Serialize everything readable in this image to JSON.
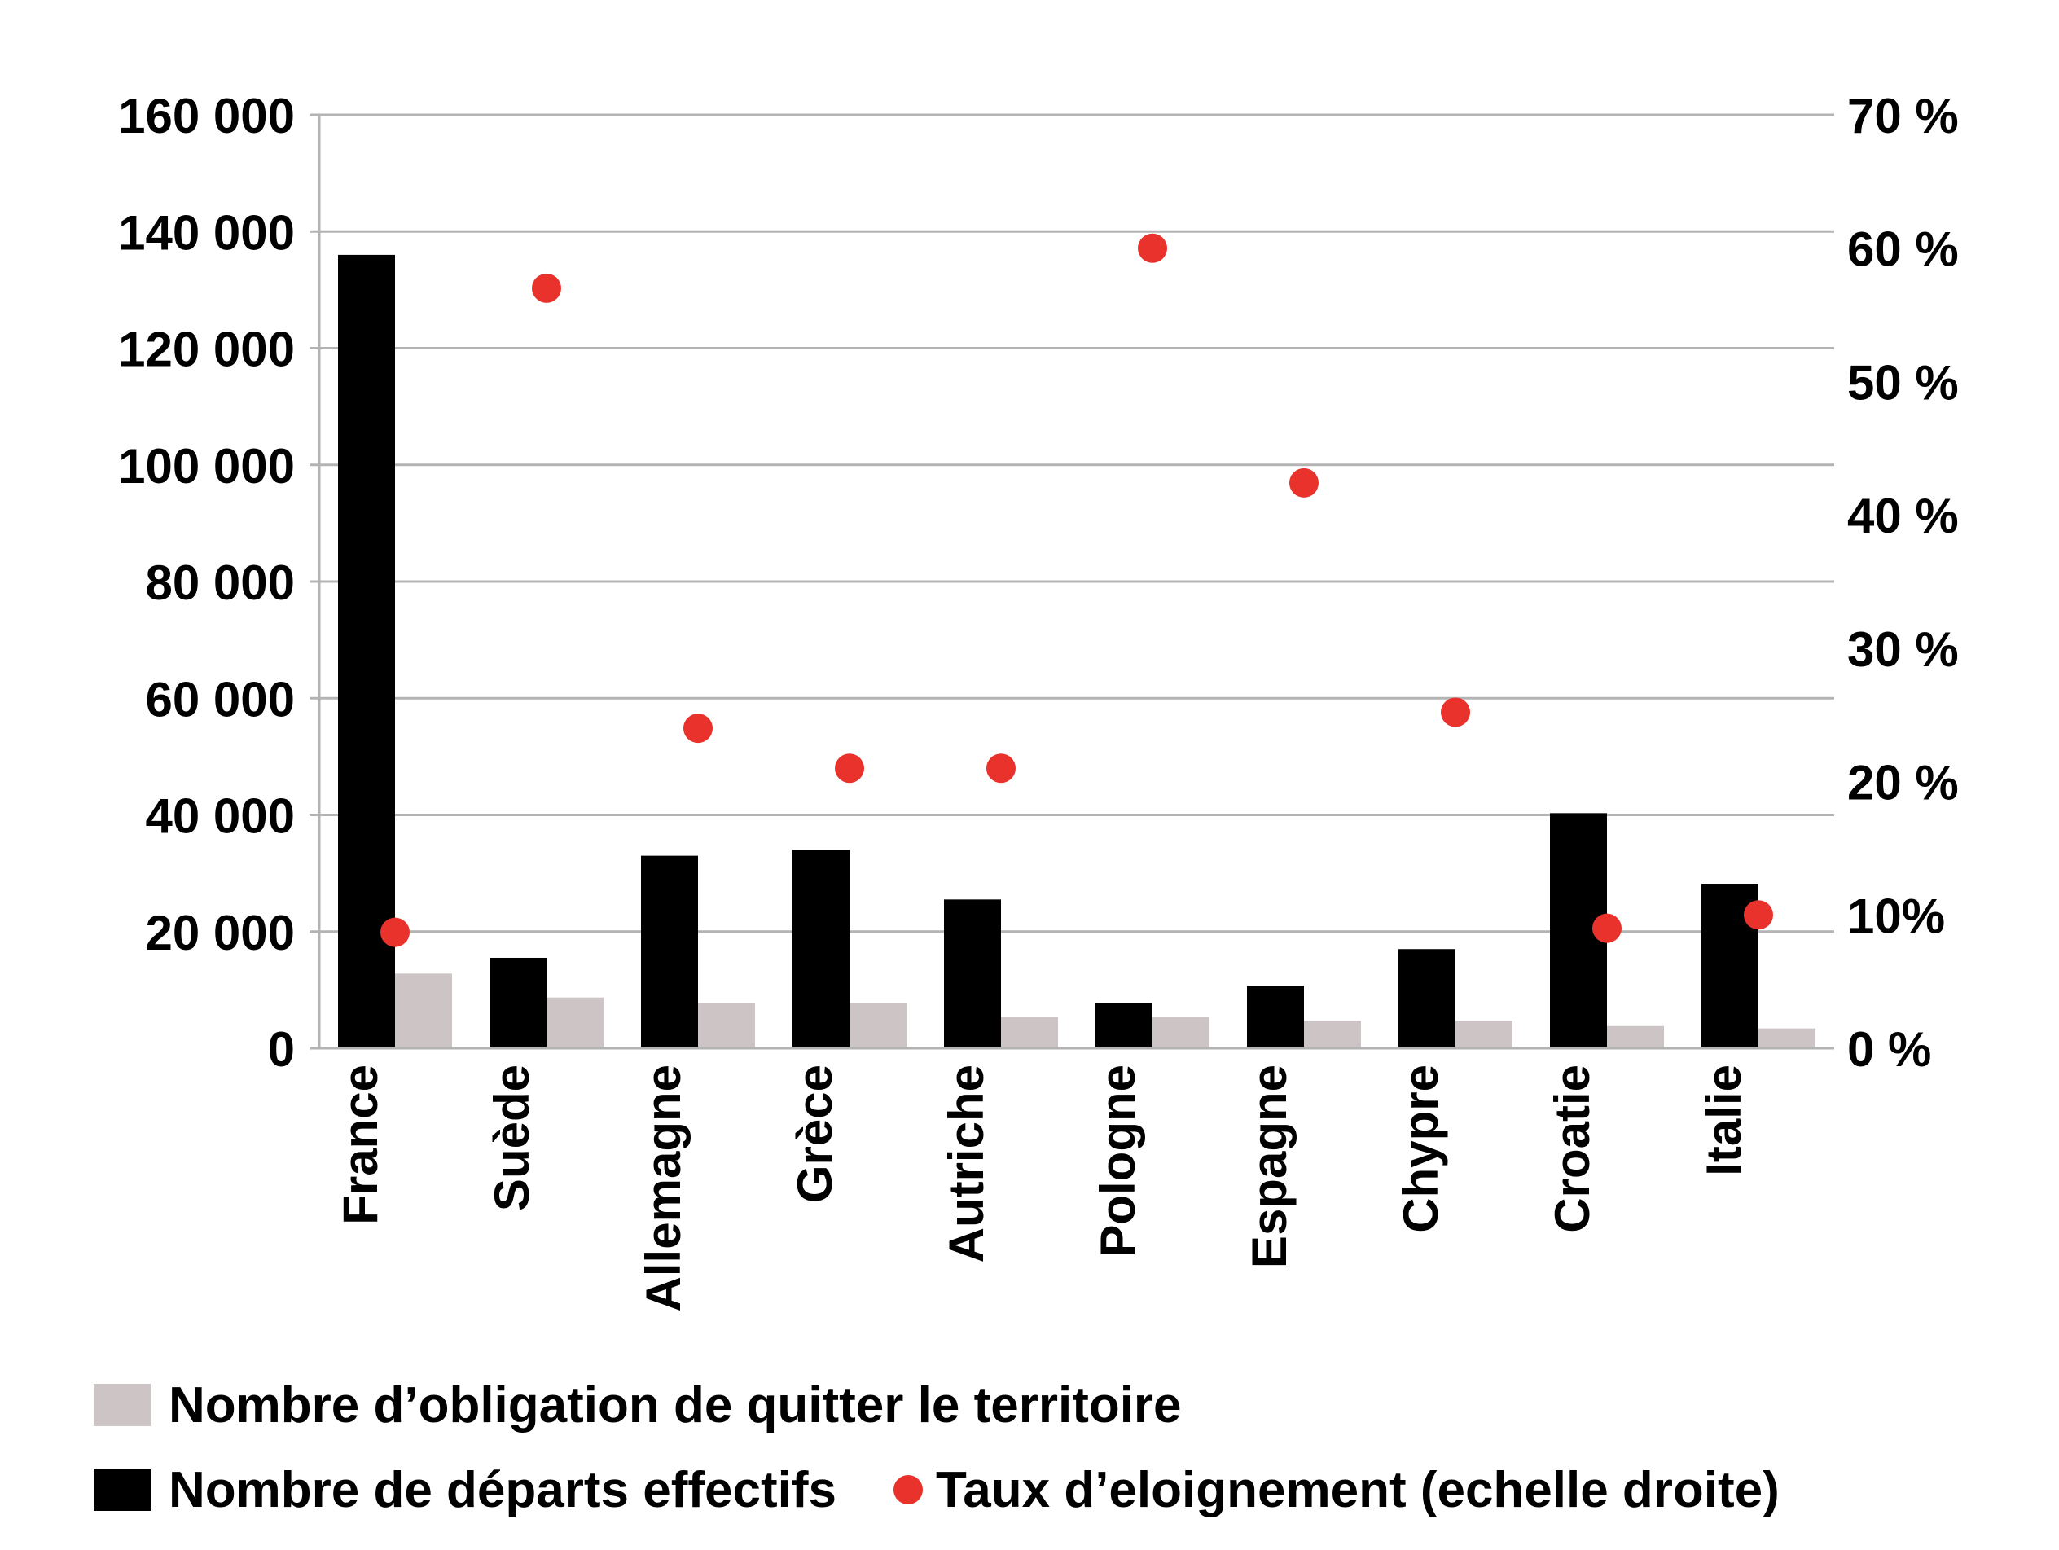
{
  "colors": {
    "departures": "#000000",
    "obligations": "#cdc5c5",
    "rate": "#e8322b",
    "grid": "#b3b3b3"
  },
  "legend": {
    "obligations_label": "Nombre d’obligation de quitter le territoire",
    "departures_label": "Nombre de départs effectifs",
    "rate_label": "Taux d’eloignement (echelle droite)"
  },
  "chart_data": {
    "type": "bar",
    "categories": [
      "France",
      "Suède",
      "Allemagne",
      "Grèce",
      "Autriche",
      "Pologne",
      "Espagne",
      "Chypre",
      "Croatie",
      "Italie"
    ],
    "series": [
      {
        "name": "Nombre de départs effectifs",
        "type": "bar",
        "axis": "left",
        "values": [
          136000,
          15500,
          33000,
          34000,
          25500,
          7700,
          10700,
          17000,
          40300,
          28200
        ]
      },
      {
        "name": "Nombre d’obligation de quitter le territoire",
        "type": "bar",
        "axis": "left",
        "values": [
          12800,
          8700,
          7700,
          7700,
          5400,
          5400,
          4700,
          4700,
          3800,
          3400
        ]
      },
      {
        "name": "Taux d’eloignement (echelle droite)",
        "type": "scatter",
        "axis": "right",
        "values": [
          8.7,
          57,
          24,
          21,
          21,
          60,
          42.4,
          25.2,
          9,
          10
        ]
      }
    ],
    "y_left": {
      "min": 0,
      "max": 160000,
      "ticks": [
        0,
        20000,
        40000,
        60000,
        80000,
        100000,
        120000,
        140000,
        160000
      ],
      "tick_labels": [
        "0",
        "20 000",
        "40 000",
        "60 000",
        "80 000",
        "100 000",
        "120 000",
        "140 000",
        "160 000"
      ]
    },
    "y_right": {
      "min": 0,
      "max": 70,
      "ticks": [
        0,
        10,
        20,
        30,
        40,
        50,
        60,
        70
      ],
      "tick_labels": [
        "0 %",
        "10%",
        "20 %",
        "30 %",
        "40 %",
        "50 %",
        "60 %",
        "70 %"
      ]
    },
    "grid": true,
    "legend_position": "bottom"
  }
}
